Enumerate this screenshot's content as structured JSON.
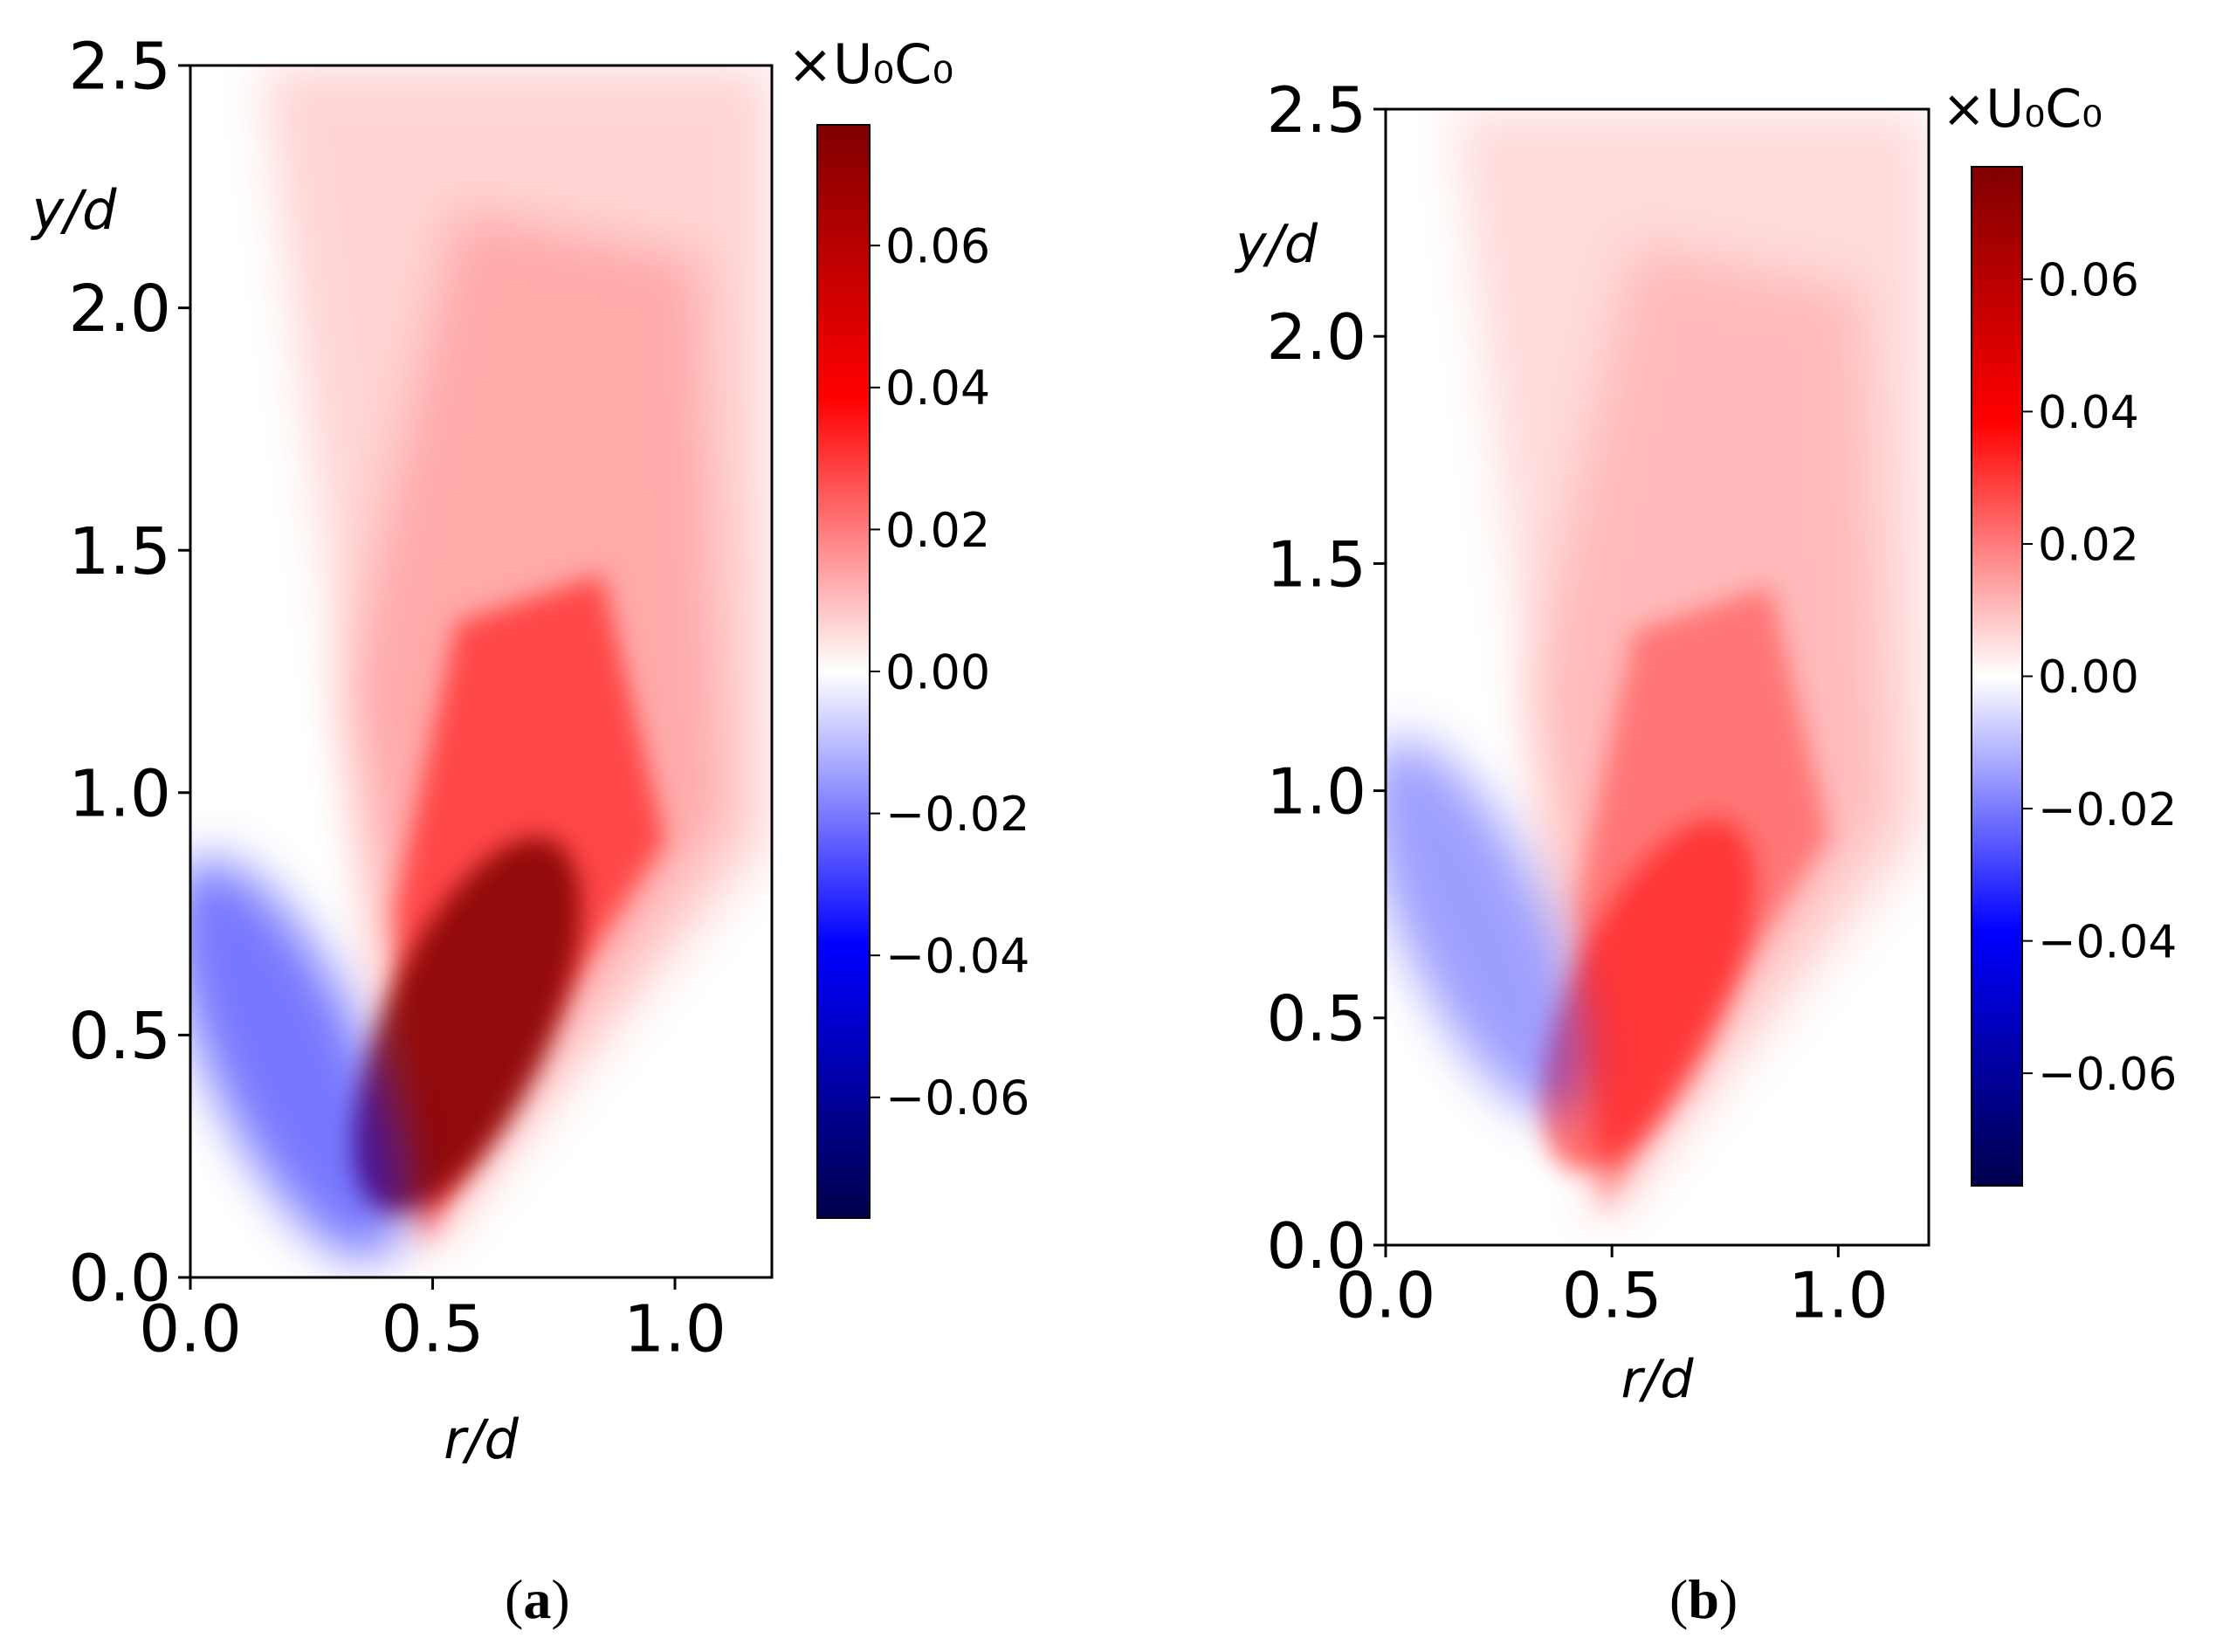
{
  "chart_data": [
    {
      "type": "heatmap",
      "panel_label": "a",
      "title": "",
      "xlabel": "r/d",
      "ylabel": "y/d",
      "xlim": [
        0.0,
        1.2
      ],
      "ylim": [
        0.0,
        2.5
      ],
      "xticks": [
        0.0,
        0.5,
        1.0
      ],
      "xtick_labels": [
        "0.0",
        "0.5",
        "1.0"
      ],
      "yticks": [
        0.0,
        0.5,
        1.0,
        1.5,
        2.0,
        2.5
      ],
      "ytick_labels": [
        "0.0",
        "0.5",
        "1.0",
        "1.5",
        "2.0",
        "2.5"
      ],
      "colorbar": {
        "label": "×U₀C₀",
        "range": [
          -0.077,
          0.077
        ],
        "ticks": [
          0.06,
          0.04,
          0.02,
          0.0,
          -0.02,
          -0.04,
          -0.06
        ],
        "tick_labels": [
          "0.06",
          "0.04",
          "0.02",
          "0.00",
          "−0.02",
          "−0.04",
          "−0.06"
        ],
        "colormap": "seismic"
      },
      "features": [
        {
          "kind": "positive_lobe",
          "r": 0.57,
          "y": 0.52,
          "peak": 0.072
        },
        {
          "kind": "negative_lobe",
          "r": 0.2,
          "y": 0.45,
          "peak": -0.018
        }
      ]
    },
    {
      "type": "heatmap",
      "panel_label": "b",
      "title": "",
      "xlabel": "r/d",
      "ylabel": "y/d",
      "xlim": [
        0.0,
        1.2
      ],
      "ylim": [
        0.0,
        2.5
      ],
      "xticks": [
        0.0,
        0.5,
        1.0
      ],
      "xtick_labels": [
        "0.0",
        "0.5",
        "1.0"
      ],
      "yticks": [
        0.0,
        0.5,
        1.0,
        1.5,
        2.0,
        2.5
      ],
      "ytick_labels": [
        "0.0",
        "0.5",
        "1.0",
        "1.5",
        "2.0",
        "2.5"
      ],
      "colorbar": {
        "label": "×U₀C₀",
        "range": [
          -0.077,
          0.077
        ],
        "ticks": [
          0.06,
          0.04,
          0.02,
          0.0,
          -0.02,
          -0.04,
          -0.06
        ],
        "tick_labels": [
          "0.06",
          "0.04",
          "0.02",
          "0.00",
          "−0.02",
          "−0.04",
          "−0.06"
        ],
        "colormap": "seismic"
      },
      "features": [
        {
          "kind": "positive_lobe",
          "r": 0.58,
          "y": 0.55,
          "peak": 0.036
        },
        {
          "kind": "negative_lobe",
          "r": 0.2,
          "y": 0.7,
          "peak": -0.008
        }
      ]
    }
  ],
  "colors": {
    "colormap_stops": [
      "#00004c",
      "#0000ff",
      "#ffffff",
      "#ff0000",
      "#800000"
    ]
  }
}
